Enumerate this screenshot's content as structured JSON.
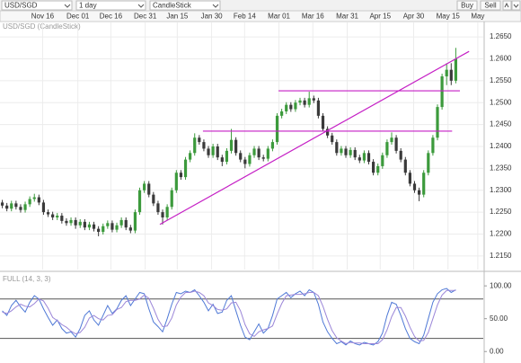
{
  "toolbar": {
    "symbol": "USD/SGD",
    "interval": "1 day",
    "chart_type": "CandleStick",
    "buy": "Buy",
    "sell": "Sell"
  },
  "chart_data": [
    {
      "type": "candlestick",
      "title": "USD/SGD (CandleStick)",
      "xlim": [
        -0.5,
        105
      ],
      "xticks": [
        {
          "value": 8.8,
          "label": "Nov 16"
        },
        {
          "value": 16.5,
          "label": "Dec 01"
        },
        {
          "value": 23.7,
          "label": "Dec 16"
        },
        {
          "value": 31.2,
          "label": "Dec 31"
        },
        {
          "value": 38.2,
          "label": "Jan 15"
        },
        {
          "value": 45.7,
          "label": "Jan 30"
        },
        {
          "value": 52.9,
          "label": "Feb 14"
        },
        {
          "value": 60.4,
          "label": "Mar 01"
        },
        {
          "value": 67.8,
          "label": "Mar 16"
        },
        {
          "value": 75.3,
          "label": "Mar 31"
        },
        {
          "value": 82.5,
          "label": "Apr 15"
        },
        {
          "value": 89.8,
          "label": "Apr 30"
        },
        {
          "value": 97.3,
          "label": "May 15"
        },
        {
          "value": 103.8,
          "label": "May"
        }
      ],
      "ylim": [
        1.2119,
        1.2683
      ],
      "yticks": [
        {
          "value": 1.265,
          "label": "1.2650"
        },
        {
          "value": 1.26,
          "label": "1.2600"
        },
        {
          "value": 1.255,
          "label": "1.2550"
        },
        {
          "value": 1.25,
          "label": "1.2500"
        },
        {
          "value": 1.245,
          "label": "1.2450"
        },
        {
          "value": 1.24,
          "label": "1.2400"
        },
        {
          "value": 1.235,
          "label": "1.2350"
        },
        {
          "value": 1.23,
          "label": "1.2300"
        },
        {
          "value": 1.225,
          "label": "1.2250"
        },
        {
          "value": 1.22,
          "label": "1.2200"
        },
        {
          "value": 1.215,
          "label": "1.2150"
        }
      ],
      "grid": true,
      "up_color": "#3c9a3c",
      "down_color": "#3a3a3a",
      "open": [
        1.2272,
        1.2265,
        1.2258,
        1.227,
        1.2262,
        1.2255,
        1.2268,
        1.228,
        1.2284,
        1.2272,
        1.225,
        1.2245,
        1.2238,
        1.2242,
        1.223,
        1.2225,
        1.2232,
        1.222,
        1.2228,
        1.2215,
        1.2222,
        1.2212,
        1.2205,
        1.2218,
        1.2225,
        1.221,
        1.222,
        1.2232,
        1.2215,
        1.2208,
        1.225,
        1.23,
        1.2315,
        1.229,
        1.227,
        1.225,
        1.2238,
        1.2262,
        1.23,
        1.234,
        1.233,
        1.237,
        1.2385,
        1.242,
        1.241,
        1.2395,
        1.238,
        1.24,
        1.2375,
        1.2365,
        1.239,
        1.2415,
        1.2385,
        1.237,
        1.236,
        1.238,
        1.2395,
        1.2375,
        1.2372,
        1.2395,
        1.241,
        1.247,
        1.248,
        1.2495,
        1.2485,
        1.25,
        1.2505,
        1.2495,
        1.251,
        1.2505,
        1.247,
        1.244,
        1.2425,
        1.241,
        1.2385,
        1.2395,
        1.238,
        1.2392,
        1.2375,
        1.2368,
        1.2385,
        1.2365,
        1.234,
        1.2355,
        1.238,
        1.241,
        1.242,
        1.239,
        1.237,
        1.234,
        1.2315,
        1.23,
        1.229,
        1.234,
        1.2385,
        1.242,
        1.249,
        1.256,
        1.2575,
        1.255
      ],
      "high": [
        1.2278,
        1.2271,
        1.2276,
        1.2276,
        1.2268,
        1.2274,
        1.2286,
        1.2292,
        1.229,
        1.2278,
        1.2256,
        1.2251,
        1.2248,
        1.2248,
        1.2236,
        1.2238,
        1.2238,
        1.2234,
        1.2234,
        1.2228,
        1.2228,
        1.2218,
        1.2224,
        1.2231,
        1.2231,
        1.2226,
        1.2238,
        1.2238,
        1.2221,
        1.2256,
        1.2306,
        1.2321,
        1.2321,
        1.2296,
        1.2276,
        1.2256,
        1.2268,
        1.2306,
        1.2346,
        1.2346,
        1.2376,
        1.2391,
        1.243,
        1.2426,
        1.2416,
        1.2401,
        1.2406,
        1.2406,
        1.2381,
        1.2396,
        1.244,
        1.2421,
        1.2391,
        1.2376,
        1.2386,
        1.2401,
        1.2401,
        1.2381,
        1.2401,
        1.2416,
        1.2476,
        1.2486,
        1.2501,
        1.2501,
        1.2506,
        1.2511,
        1.2511,
        1.2525,
        1.2516,
        1.2511,
        1.2476,
        1.2446,
        1.2431,
        1.2416,
        1.2401,
        1.2401,
        1.2398,
        1.2398,
        1.2381,
        1.2391,
        1.2391,
        1.2371,
        1.2361,
        1.2386,
        1.2416,
        1.2432,
        1.2426,
        1.2396,
        1.2376,
        1.2346,
        1.2321,
        1.2306,
        1.2346,
        1.2391,
        1.2426,
        1.2496,
        1.2566,
        1.259,
        1.259,
        1.2625
      ],
      "low": [
        1.2259,
        1.2252,
        1.2252,
        1.2256,
        1.2249,
        1.2249,
        1.2262,
        1.2274,
        1.2266,
        1.2244,
        1.2239,
        1.2232,
        1.2232,
        1.2224,
        1.2219,
        1.2219,
        1.2212,
        1.2214,
        1.2209,
        1.2209,
        1.2206,
        1.2195,
        1.2199,
        1.2212,
        1.2204,
        1.2204,
        1.2214,
        1.2209,
        1.2202,
        1.2202,
        1.2244,
        1.2294,
        1.2284,
        1.2264,
        1.2244,
        1.2222,
        1.2232,
        1.2256,
        1.2294,
        1.2324,
        1.2324,
        1.2364,
        1.2379,
        1.2404,
        1.2389,
        1.2374,
        1.2374,
        1.2369,
        1.2355,
        1.2359,
        1.2384,
        1.2379,
        1.2364,
        1.235,
        1.2354,
        1.2374,
        1.2369,
        1.2366,
        1.2366,
        1.2389,
        1.2404,
        1.2464,
        1.2474,
        1.2479,
        1.2479,
        1.2494,
        1.2489,
        1.2489,
        1.2499,
        1.2464,
        1.2434,
        1.2419,
        1.2404,
        1.2379,
        1.2379,
        1.2374,
        1.2374,
        1.2369,
        1.2362,
        1.2362,
        1.2359,
        1.2334,
        1.2334,
        1.2349,
        1.2374,
        1.2404,
        1.2384,
        1.2364,
        1.2334,
        1.2309,
        1.2294,
        1.2275,
        1.2284,
        1.2334,
        1.2379,
        1.2414,
        1.2484,
        1.254,
        1.254,
        1.2544
      ],
      "close": [
        1.2265,
        1.2258,
        1.227,
        1.2262,
        1.2255,
        1.2268,
        1.228,
        1.2284,
        1.2272,
        1.225,
        1.2245,
        1.2238,
        1.2242,
        1.223,
        1.2225,
        1.2232,
        1.222,
        1.2228,
        1.2215,
        1.2222,
        1.2212,
        1.2205,
        1.2218,
        1.2225,
        1.221,
        1.222,
        1.2232,
        1.2215,
        1.2208,
        1.225,
        1.23,
        1.2315,
        1.229,
        1.227,
        1.225,
        1.2238,
        1.2262,
        1.23,
        1.234,
        1.233,
        1.237,
        1.2385,
        1.242,
        1.241,
        1.2395,
        1.238,
        1.24,
        1.2375,
        1.2365,
        1.239,
        1.2415,
        1.2385,
        1.237,
        1.236,
        1.238,
        1.2395,
        1.2375,
        1.2372,
        1.2395,
        1.241,
        1.247,
        1.248,
        1.2495,
        1.2485,
        1.25,
        1.2505,
        1.2495,
        1.251,
        1.2505,
        1.247,
        1.244,
        1.2425,
        1.241,
        1.2385,
        1.2395,
        1.238,
        1.2392,
        1.2375,
        1.2368,
        1.2385,
        1.2365,
        1.234,
        1.2355,
        1.238,
        1.241,
        1.242,
        1.239,
        1.237,
        1.234,
        1.2315,
        1.23,
        1.229,
        1.234,
        1.2385,
        1.242,
        1.249,
        1.256,
        1.2575,
        1.255,
        1.26
      ],
      "lines": [
        {
          "color": "#c51fc5",
          "x": [
            34.4,
            101.9
          ],
          "y": [
            1.2222,
            1.2617
          ]
        },
        {
          "color": "#c51fc5",
          "x": [
            60.3,
            99.9
          ],
          "y": [
            1.2527,
            1.2527
          ]
        },
        {
          "color": "#c51fc5",
          "x": [
            43.8,
            98.2
          ],
          "y": [
            1.2435,
            1.2435
          ]
        }
      ]
    },
    {
      "type": "line",
      "title": "FULL (14, 3, 3)",
      "xlim": [
        -0.5,
        105
      ],
      "ylim": [
        -12,
        118
      ],
      "yticks": [
        {
          "value": 100,
          "label": "100.00"
        },
        {
          "value": 50,
          "label": "50.00"
        },
        {
          "value": 0,
          "label": "0.00"
        }
      ],
      "levels": [
        80,
        20
      ],
      "level_color": "#555555",
      "series": [
        {
          "color": "#4f79d6",
          "values": [
            62,
            55,
            70,
            78,
            68,
            60,
            75,
            85,
            80,
            65,
            52,
            40,
            48,
            35,
            28,
            30,
            22,
            35,
            55,
            62,
            48,
            40,
            55,
            70,
            58,
            65,
            78,
            85,
            70,
            80,
            90,
            88,
            65,
            45,
            38,
            30,
            50,
            72,
            90,
            88,
            92,
            90,
            94,
            85,
            75,
            62,
            72,
            58,
            60,
            78,
            85,
            62,
            40,
            22,
            18,
            30,
            42,
            28,
            35,
            55,
            80,
            85,
            90,
            82,
            88,
            92,
            85,
            94,
            90,
            72,
            45,
            30,
            20,
            12,
            15,
            10,
            16,
            12,
            10,
            14,
            12,
            10,
            15,
            28,
            55,
            75,
            72,
            55,
            35,
            20,
            15,
            12,
            25,
            50,
            75,
            88,
            94,
            96,
            90,
            94
          ]
        },
        {
          "color": "#9b86d8",
          "values": [
            60,
            58,
            62,
            68,
            72,
            69,
            68,
            73,
            80,
            77,
            66,
            52,
            47,
            41,
            37,
            31,
            27,
            29,
            37,
            51,
            55,
            50,
            48,
            55,
            56,
            64,
            67,
            76,
            78,
            78,
            80,
            86,
            81,
            66,
            49,
            38,
            39,
            51,
            71,
            83,
            90,
            90,
            92,
            90,
            85,
            74,
            70,
            64,
            63,
            65,
            74,
            75,
            62,
            41,
            27,
            23,
            30,
            33,
            35,
            39,
            57,
            73,
            85,
            86,
            87,
            87,
            88,
            90,
            90,
            85,
            69,
            49,
            32,
            21,
            16,
            12,
            14,
            13,
            13,
            12,
            12,
            12,
            12,
            18,
            33,
            53,
            67,
            67,
            54,
            37,
            23,
            16,
            17,
            29,
            50,
            71,
            86,
            93,
            93,
            93
          ]
        }
      ]
    }
  ]
}
